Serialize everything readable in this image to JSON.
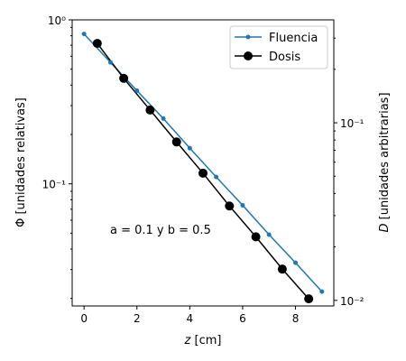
{
  "chart_data": {
    "type": "line",
    "xlabel_var": "z",
    "xlabel_unit": " [cm]",
    "ylabel_left": "Φ [unidades relativas]",
    "ylabel_right_var": "D",
    "ylabel_right_unit": " [unidades arbitrarias]",
    "annotation": "a = 0.1 y b = 0.5",
    "xlim": [
      -0.45,
      9.45
    ],
    "ylim_left": [
      0.018,
      1.0
    ],
    "ylim_right": [
      0.0093,
      0.38
    ],
    "yscale_left": "log",
    "yscale_right": "log",
    "x_ticks": [
      {
        "value": 0,
        "label": "0"
      },
      {
        "value": 2,
        "label": "2"
      },
      {
        "value": 4,
        "label": "4"
      },
      {
        "value": 6,
        "label": "6"
      },
      {
        "value": 8,
        "label": "8"
      }
    ],
    "y_left_ticks": [
      {
        "value": 1.0,
        "label": "10⁰"
      },
      {
        "value": 0.1,
        "label": "10⁻¹"
      }
    ],
    "y_right_ticks": [
      {
        "value": 0.1,
        "label": "10⁻¹"
      },
      {
        "value": 0.01,
        "label": "10⁻²"
      }
    ],
    "legend": {
      "position": "top-right",
      "entries": [
        "Fluencia",
        "Dosis"
      ]
    },
    "series": [
      {
        "name": "Fluencia",
        "axis": "left",
        "color": "#1f77b4",
        "marker": "small-dot",
        "x": [
          0,
          1,
          2,
          3,
          4,
          5,
          6,
          7,
          8,
          9
        ],
        "y": [
          0.82,
          0.55,
          0.37,
          0.25,
          0.165,
          0.11,
          0.074,
          0.049,
          0.033,
          0.022
        ]
      },
      {
        "name": "Dosis",
        "axis": "right",
        "color": "#000000",
        "marker": "large-dot",
        "x": [
          0.5,
          1.5,
          2.5,
          3.5,
          4.5,
          5.5,
          6.5,
          7.5,
          8.5
        ],
        "y": [
          0.28,
          0.178,
          0.118,
          0.078,
          0.052,
          0.034,
          0.0228,
          0.015,
          0.0102
        ]
      }
    ]
  }
}
